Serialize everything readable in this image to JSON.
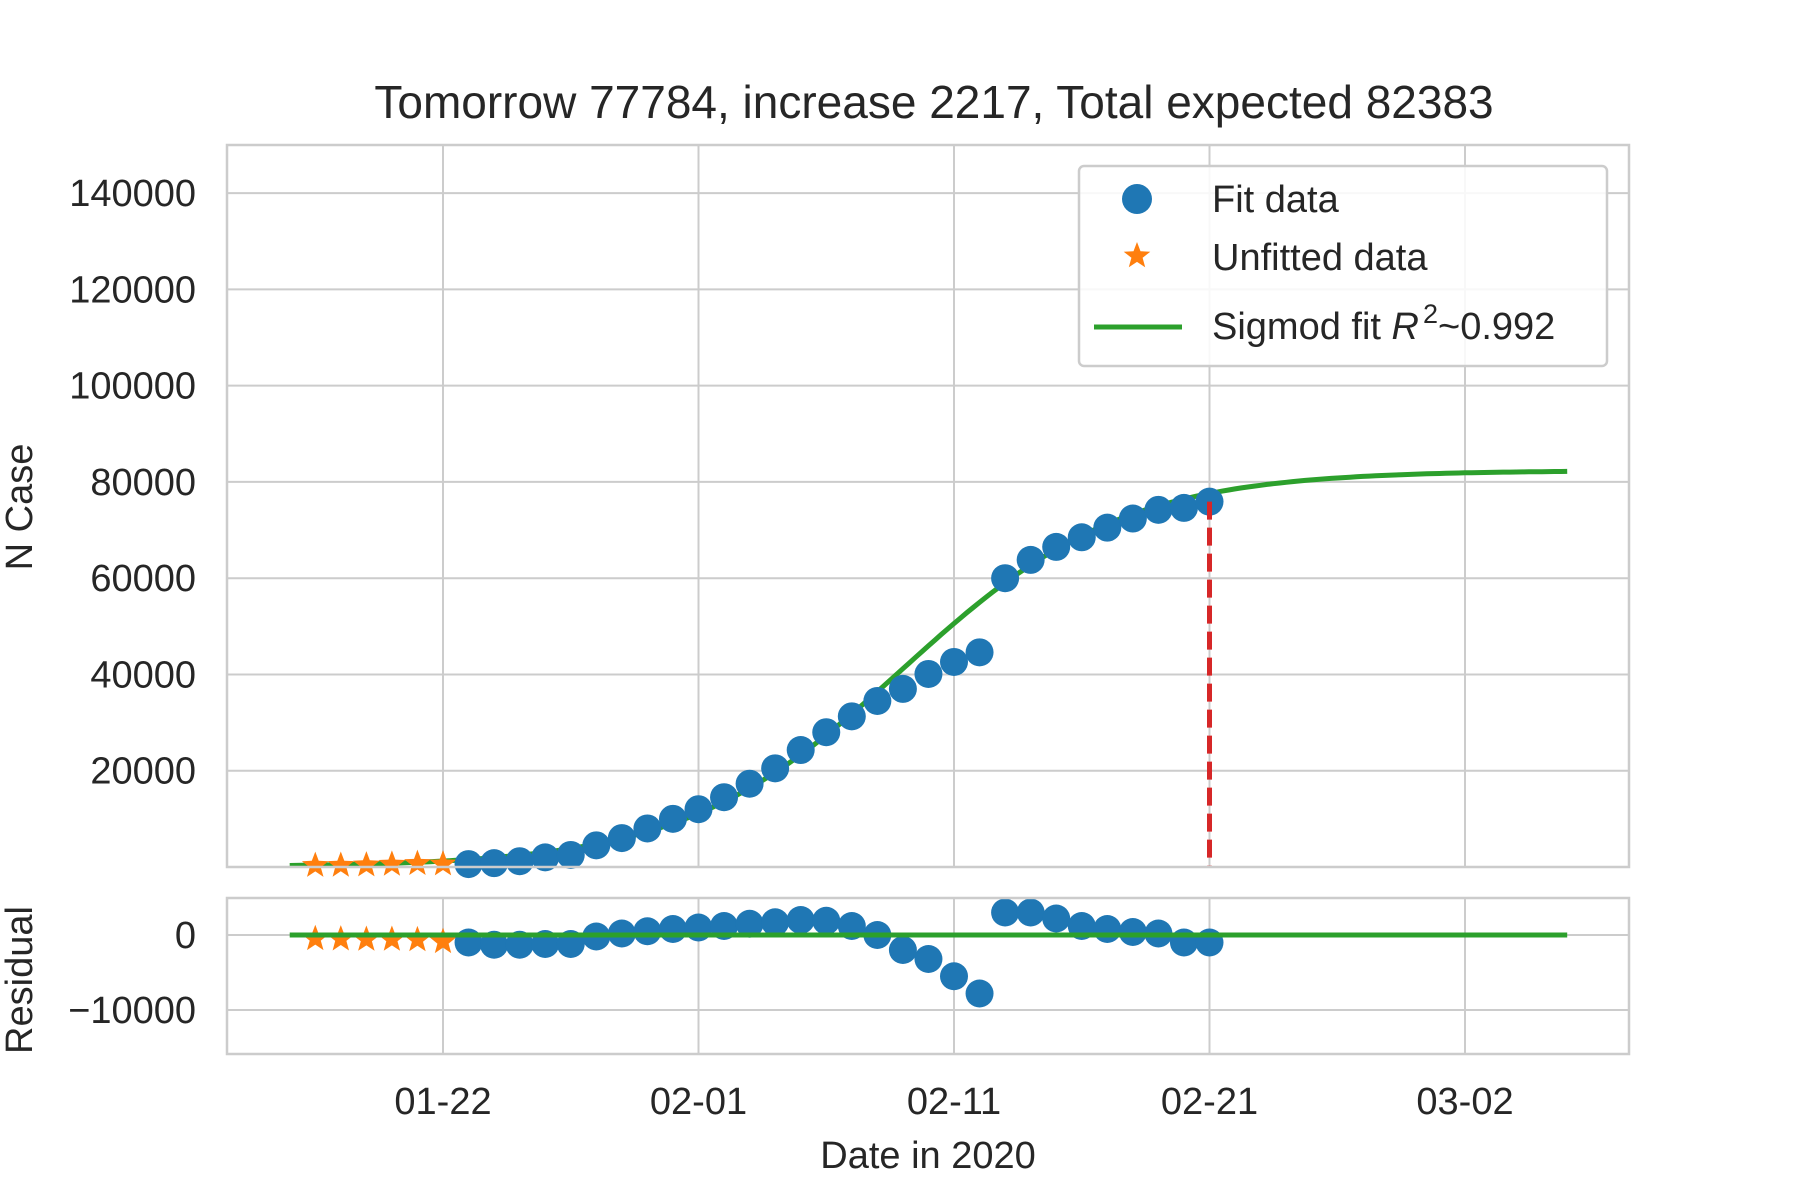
{
  "chart_data": {
    "type": "scatter",
    "title": "Tomorrow 77784, increase 2217, Total expected 82383",
    "xlabel": "Date in 2020",
    "x_tick_labels": [
      "01-22",
      "02-01",
      "02-11",
      "02-21",
      "03-02"
    ],
    "grid": true,
    "legend_placement": "top-right",
    "colors": {
      "fit": "#1f77b4",
      "unfitted": "#ff7f0e",
      "curve": "#2ca02c",
      "cutoff": "#d62728",
      "grid": "#cccccc"
    },
    "main": {
      "ylabel": "N Case",
      "ylim": [
        0,
        150000
      ],
      "y_ticks": [
        20000,
        40000,
        60000,
        80000,
        100000,
        120000,
        140000
      ],
      "y_tick_labels": [
        "20000",
        "40000",
        "60000",
        "80000",
        "100000",
        "120000",
        "140000"
      ],
      "unfitted": {
        "name": "Unfitted data",
        "x": [
          "2020-01-17",
          "2020-01-18",
          "2020-01-19",
          "2020-01-20",
          "2020-01-21",
          "2020-01-22"
        ],
        "y": [
          300,
          320,
          400,
          550,
          700,
          600
        ]
      },
      "fit": {
        "name": "Fit data",
        "x": [
          "2020-01-23",
          "2020-01-24",
          "2020-01-25",
          "2020-01-26",
          "2020-01-27",
          "2020-01-28",
          "2020-01-29",
          "2020-01-30",
          "2020-01-31",
          "2020-02-01",
          "2020-02-02",
          "2020-02-03",
          "2020-02-04",
          "2020-02-05",
          "2020-02-06",
          "2020-02-07",
          "2020-02-08",
          "2020-02-09",
          "2020-02-10",
          "2020-02-11",
          "2020-02-12",
          "2020-02-13",
          "2020-02-14",
          "2020-02-15",
          "2020-02-16",
          "2020-02-17",
          "2020-02-18",
          "2020-02-19",
          "2020-02-20",
          "2020-02-21"
        ],
        "y": [
          600,
          800,
          1200,
          2000,
          2500,
          4500,
          6000,
          8000,
          10000,
          12000,
          14500,
          17300,
          20500,
          24300,
          28000,
          31300,
          34500,
          37000,
          40100,
          42600,
          44600,
          60000,
          63800,
          66500,
          68500,
          70500,
          72400,
          74200,
          74600,
          75900
        ]
      },
      "curve": {
        "name": "Sigmod fit R²~0.992",
        "legend_text": "Sigmod fit ",
        "legend_r": "R",
        "legend_sup": "2",
        "legend_value": "~0.992",
        "x_start": "2020-01-16",
        "x_end": "2020-03-06",
        "L": 82383,
        "k": 0.2322,
        "x0": "2020-02-09"
      },
      "cutoff_date": "2020-02-21"
    },
    "residual": {
      "ylabel": "Residual",
      "y_ticks": [
        0,
        -10000
      ],
      "y_tick_labels": [
        "0",
        "−10000"
      ],
      "unfitted_y": [
        -500,
        -550,
        -600,
        -600,
        -650,
        -900
      ],
      "fit_y": [
        -1000,
        -1300,
        -1300,
        -1200,
        -1200,
        -200,
        200,
        500,
        800,
        1000,
        1200,
        1500,
        1700,
        2000,
        1900,
        1200,
        0,
        -2000,
        -3200,
        -5500,
        -7800,
        3000,
        3000,
        2200,
        1200,
        800,
        400,
        200,
        -1000,
        -1000
      ]
    }
  }
}
